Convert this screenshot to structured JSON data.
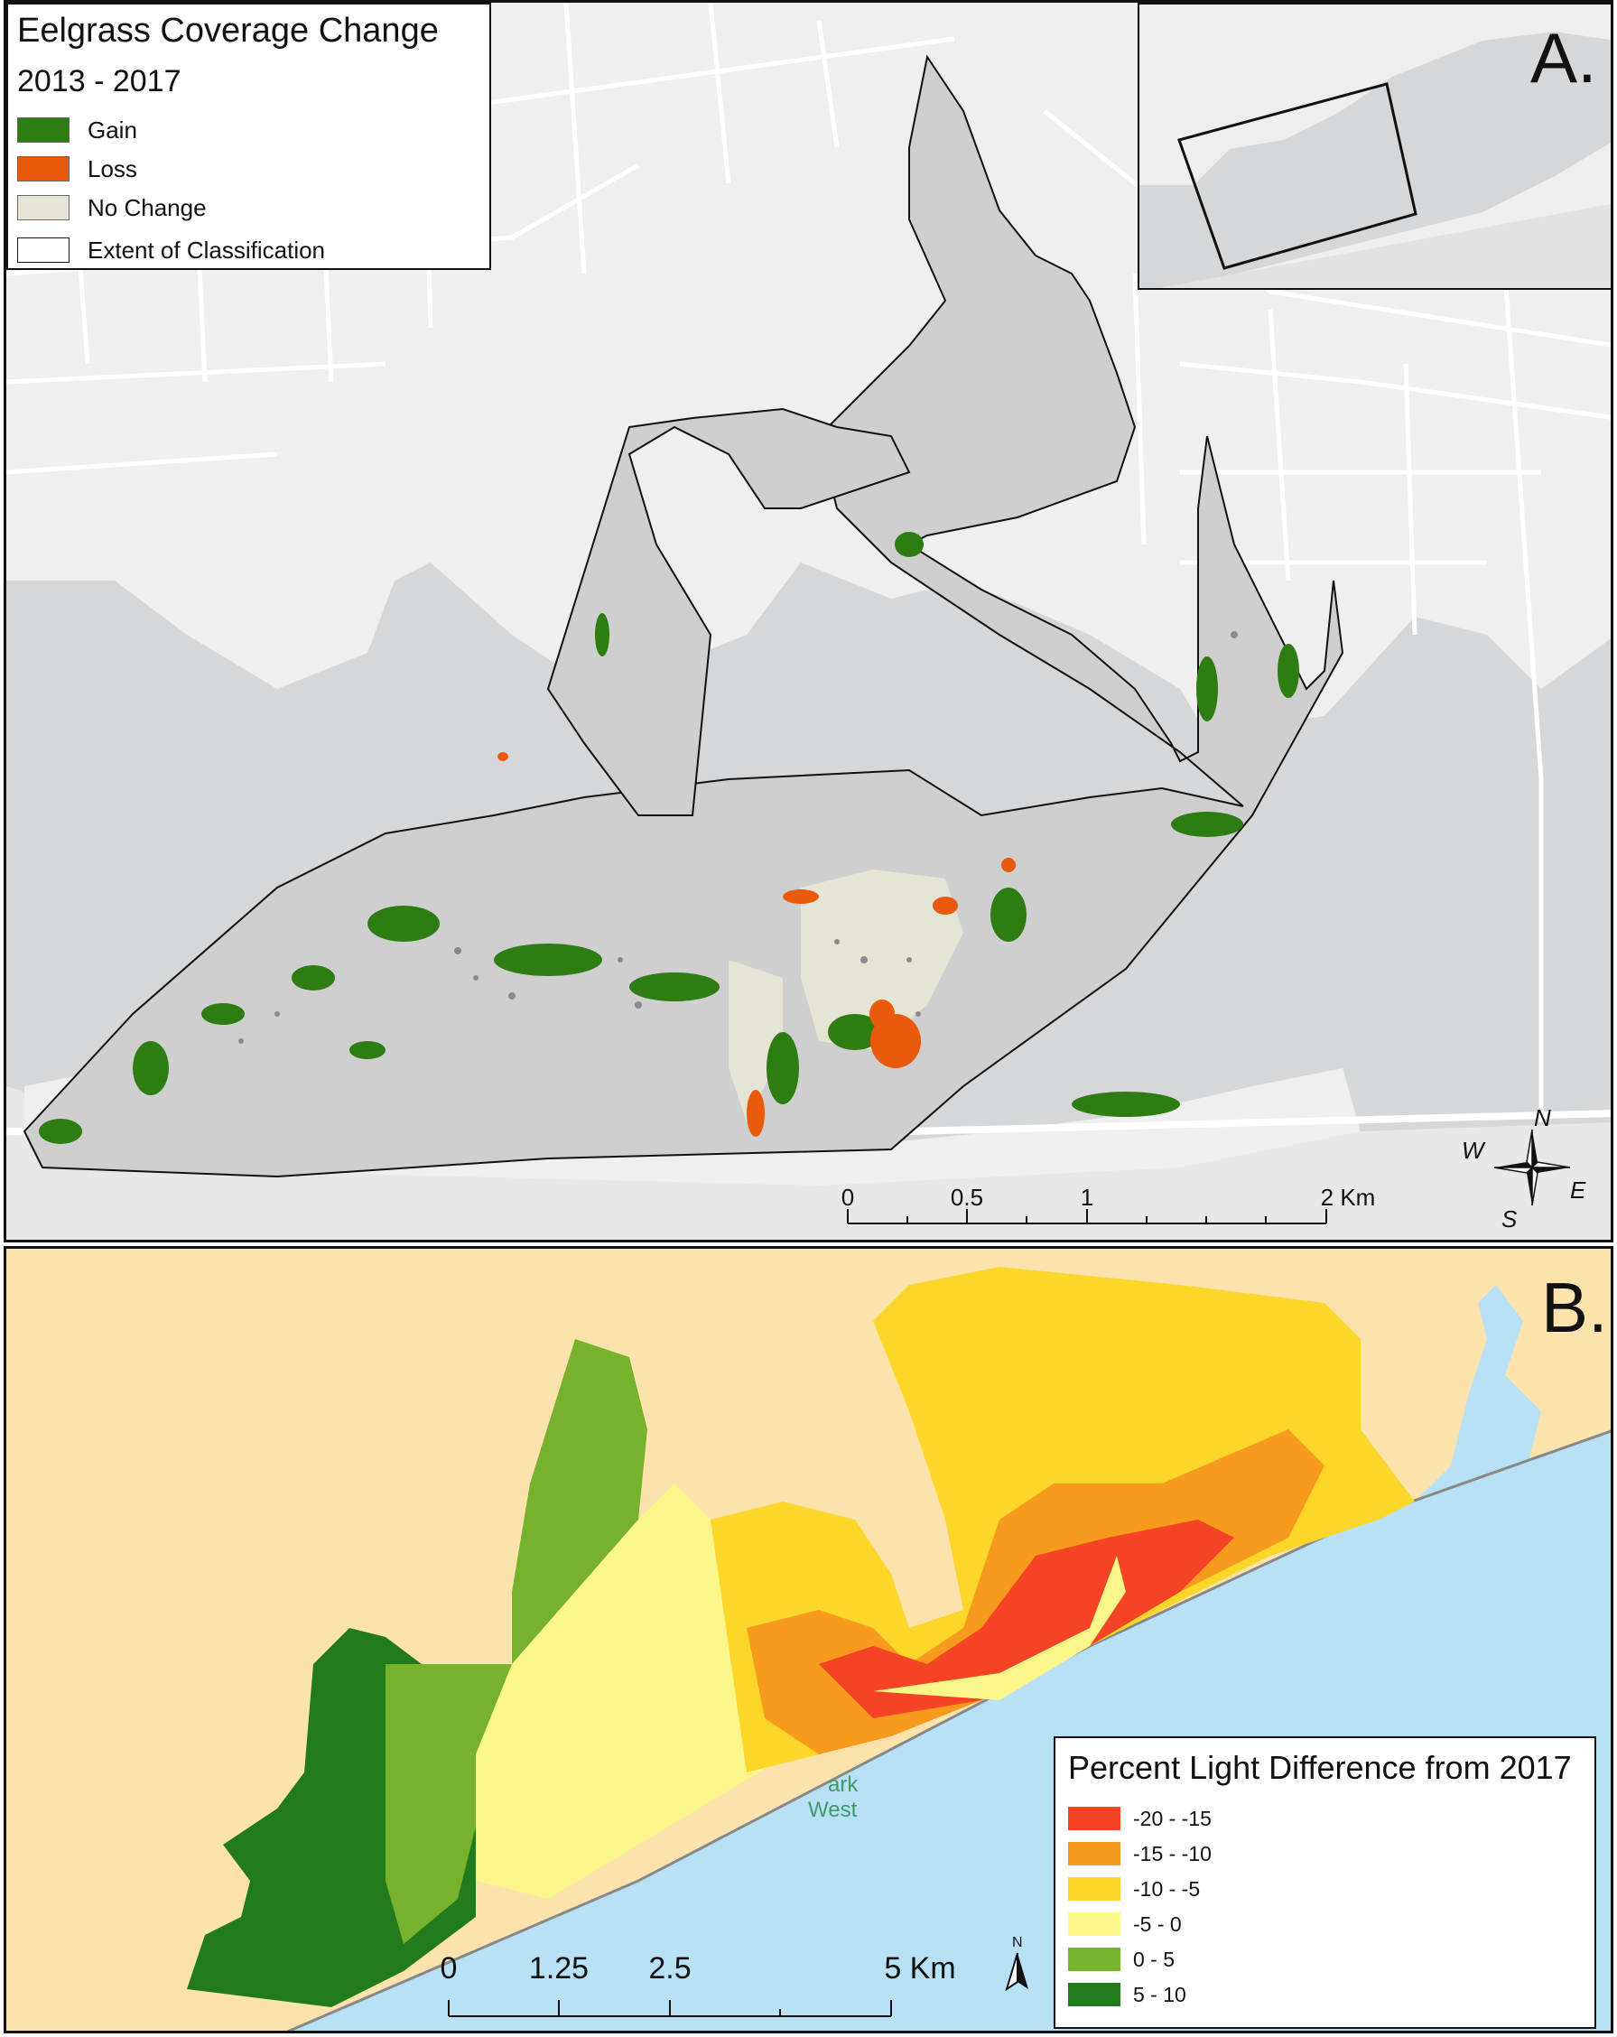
{
  "panel_a": {
    "letter": "A.",
    "legend": {
      "title": "Eelgrass Coverage Change",
      "subtitle": "2013 - 2017",
      "items": [
        {
          "label": "Gain",
          "color": "#2e7d12"
        },
        {
          "label": "Loss",
          "color": "#ea5a0c"
        },
        {
          "label": "No Change",
          "color": "#e6e4d5"
        },
        {
          "label": "Extent of Classification",
          "color": "#ffffff"
        }
      ]
    },
    "scale_bar": {
      "labels": [
        "0",
        "0.5",
        "1",
        "2 Km"
      ]
    },
    "compass": {
      "n": "N",
      "s": "S",
      "e": "E",
      "w": "W"
    }
  },
  "panel_b": {
    "letter": "B.",
    "legend": {
      "title": "Percent Light Difference from 2017",
      "items": [
        {
          "label": "-20 - -15",
          "color": "#f54326"
        },
        {
          "label": "-15 - -10",
          "color": "#f89a1c"
        },
        {
          "label": "-10 - -5",
          "color": "#fcd628"
        },
        {
          "label": "-5 - 0",
          "color": "#fbf68a"
        },
        {
          "label": "0 - 5",
          "color": "#77b22c"
        },
        {
          "label": "5 - 10",
          "color": "#217a1c"
        }
      ]
    },
    "scale_bar": {
      "labels": [
        "0",
        "1.25",
        "2.5",
        "5 Km"
      ]
    },
    "north": "N",
    "park_label_1": "ark",
    "park_label_2": "West"
  },
  "colors": {
    "water_a": "#d6d7d8",
    "land_a": "#efefef",
    "road": "#ffffff",
    "land_b": "#fce3ae",
    "ocean_b": "#b8e1f5"
  }
}
